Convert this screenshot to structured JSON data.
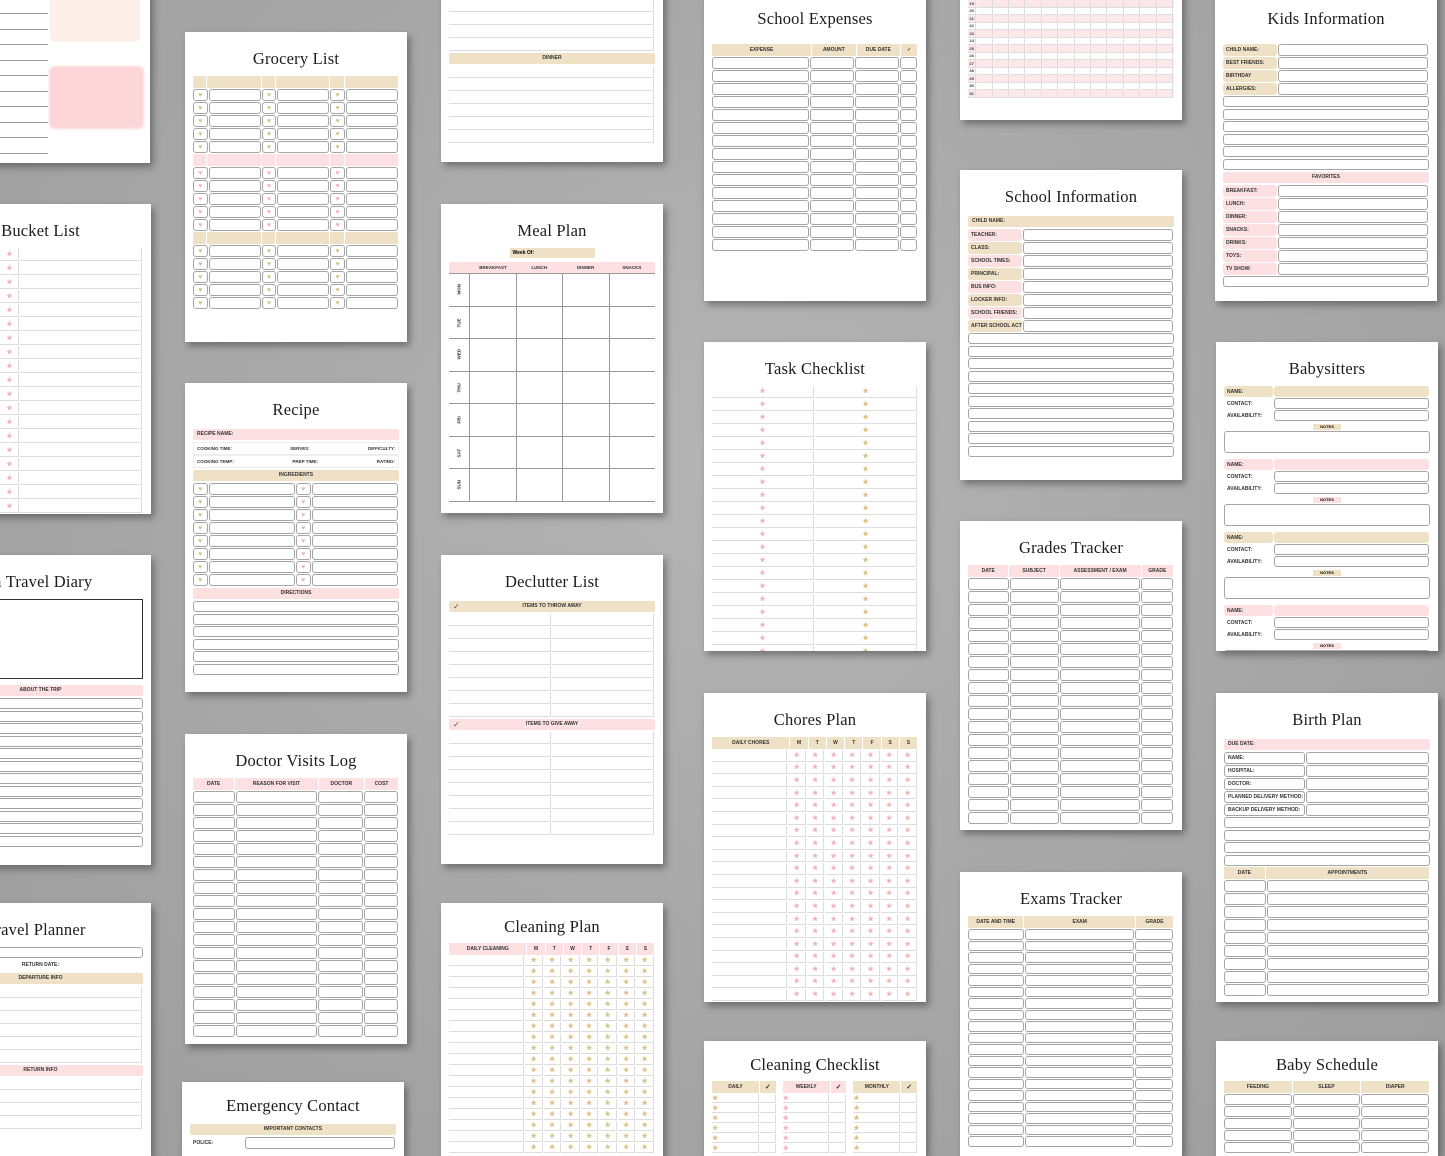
{
  "colors": {
    "beige": "#efe1c6",
    "pink": "#fde0e1",
    "gold_icon": "#dcc088",
    "pink_icon": "#f2b3b8",
    "background": "#a9a9a9"
  },
  "icons": {
    "heart": "heart-icon",
    "star": "star-icon",
    "check": "checkmark-icon"
  },
  "pages": [
    {
      "id": "p-topleft",
      "title": "",
      "blocks": [
        {
          "type": "lines",
          "rows": 10
        }
      ]
    },
    {
      "id": "grocery",
      "title": "Grocery List",
      "blocks": [
        {
          "type": "table",
          "tone": "beige",
          "headers": [
            "",
            "",
            "",
            "",
            "",
            ""
          ],
          "rows": 5,
          "icon": "heart",
          "icon_tone": "gold",
          "icon_cols": [
            0,
            2,
            4
          ]
        },
        {
          "type": "table",
          "tone": "pink",
          "headers": [
            "",
            "",
            "",
            "",
            "",
            ""
          ],
          "rows": 5,
          "icon": "heart",
          "icon_tone": "rose",
          "icon_cols": [
            0,
            2,
            4
          ]
        },
        {
          "type": "table",
          "tone": "beige",
          "headers": [
            "",
            "",
            "",
            "",
            "",
            ""
          ],
          "rows": 5,
          "icon": "heart",
          "icon_tone": "gold",
          "icon_cols": [
            0,
            2,
            4
          ]
        }
      ]
    },
    {
      "id": "bucket",
      "title": "Bucket List",
      "blocks": [
        {
          "type": "table",
          "flat": true,
          "headers": [],
          "rows": 19,
          "cols": 3,
          "icon": "star",
          "icon_tone": "rose",
          "icon_cols": [
            1
          ]
        }
      ]
    },
    {
      "id": "recipe",
      "title": "Recipe",
      "blocks": [
        {
          "type": "band",
          "tone": "pink",
          "label": "RECIPE NAME:",
          "align": "left"
        },
        {
          "type": "inline",
          "items": [
            "COOKING TIME:",
            "SERVES:",
            "DIFFICULTY:"
          ]
        },
        {
          "type": "inline",
          "items": [
            "COOKING TEMP:",
            "PREP TIME:",
            "RATING:"
          ]
        },
        {
          "type": "band",
          "tone": "beige",
          "label": "INGREDIENTS"
        },
        {
          "type": "table",
          "headers": [],
          "cols": 4,
          "rows": 8,
          "icon": "heart",
          "icon_tone": "gold",
          "icon_cols": [
            0
          ],
          "icon2_tone": "rose",
          "icon2_cols": [
            2
          ]
        },
        {
          "type": "band",
          "tone": "pink",
          "label": "DIRECTIONS"
        },
        {
          "type": "lines",
          "rows": 6
        }
      ]
    },
    {
      "id": "travel-diary",
      "title": "m Travel Diary",
      "blocks": [
        {
          "type": "frame"
        },
        {
          "type": "band",
          "tone": "pink",
          "label": "ABOUT THE TRIP"
        },
        {
          "type": "lines",
          "rows": 12
        }
      ]
    },
    {
      "id": "doctor",
      "title": "Doctor Visits Log",
      "blocks": [
        {
          "type": "table",
          "tone": "pink",
          "headers": [
            "DATE",
            "REASON FOR VISIT",
            "DOCTOR",
            "COST"
          ],
          "rows": 19
        }
      ]
    },
    {
      "id": "travel-planner",
      "title": "ravel Planner",
      "blocks": [
        {
          "type": "lines",
          "rows": 1
        },
        {
          "type": "band",
          "tone": "white",
          "label": "RETURN DATE:"
        },
        {
          "type": "band",
          "tone": "beige",
          "label": "DEPARTURE INFO"
        },
        {
          "type": "table",
          "flat": true,
          "headers": [],
          "cols": 1,
          "rows": 6
        },
        {
          "type": "band",
          "tone": "pink",
          "label": "RETURN INFO"
        },
        {
          "type": "table",
          "flat": true,
          "headers": [],
          "cols": 1,
          "rows": 4
        }
      ]
    },
    {
      "id": "emergency",
      "title": "Emergency Contact",
      "blocks": [
        {
          "type": "band",
          "tone": "beige",
          "label": "IMPORTANT CONTACTS"
        },
        {
          "type": "fields",
          "tone": "white",
          "labels": [
            "POLICE:"
          ]
        }
      ]
    },
    {
      "id": "top-partial",
      "title": "",
      "blocks": [
        {
          "type": "table",
          "flat": true,
          "headers": [],
          "cols": 1,
          "rows": 4
        },
        {
          "type": "band",
          "tone": "beige",
          "label": "DINNER"
        },
        {
          "type": "table",
          "flat": true,
          "headers": [],
          "cols": 1,
          "rows": 6
        }
      ]
    },
    {
      "id": "meal",
      "title": "Meal Plan",
      "blocks": [
        {
          "type": "week",
          "label": "Week Of:"
        },
        {
          "type": "mealgrid",
          "headers": [
            "",
            "BREAKFAST",
            "LUNCH",
            "DINNER",
            "SNACKS"
          ],
          "days": [
            "MON",
            "TUE",
            "WED",
            "THU",
            "FRI",
            "SAT",
            "SUN"
          ]
        }
      ]
    },
    {
      "id": "declutter",
      "title": "Declutter List",
      "blocks": [
        {
          "type": "band",
          "tone": "beige",
          "label": "ITEMS TO THROW AWAY",
          "check": true
        },
        {
          "type": "table",
          "flat": true,
          "headers": [],
          "cols": 2,
          "rows": 8
        },
        {
          "type": "band",
          "tone": "pink",
          "label": "ITEMS TO GIVE AWAY",
          "check": true
        },
        {
          "type": "table",
          "flat": true,
          "headers": [],
          "cols": 2,
          "rows": 8
        }
      ]
    },
    {
      "id": "cleaning-plan",
      "title": "Cleaning Plan",
      "blocks": [
        {
          "type": "table",
          "flat": true,
          "tone": "pink",
          "headers": [
            "DAILY CLEANING",
            "M",
            "T",
            "W",
            "T",
            "F",
            "S",
            "S"
          ],
          "rows": 18,
          "icon": "star",
          "icon_tone": "gold",
          "icon_cols": [
            1,
            2,
            3,
            4,
            5,
            6,
            7
          ]
        }
      ]
    },
    {
      "id": "school-expenses",
      "title": "School Expenses",
      "blocks": [
        {
          "type": "table",
          "tone": "beige",
          "headers": [
            "EXPENSE",
            "AMOUNT",
            "DUE DATE",
            "✓"
          ],
          "rows": 15
        }
      ]
    },
    {
      "id": "task",
      "title": "Task Checklist",
      "blocks": [
        {
          "type": "table",
          "flat": true,
          "headers": [],
          "cols": 2,
          "rows": 21,
          "icon": "star",
          "icon_tone": "rose",
          "icon_cols": [
            0
          ],
          "icon2_tone": "gold",
          "icon2_cols": [
            1
          ]
        }
      ]
    },
    {
      "id": "chores",
      "title": "Chores Plan",
      "blocks": [
        {
          "type": "table",
          "flat": true,
          "tone": "beige",
          "headers": [
            "DAILY CHORES",
            "M",
            "T",
            "W",
            "T",
            "F",
            "S",
            "S"
          ],
          "rows": 20,
          "icon": "star",
          "icon_tone": "rose",
          "icon_cols": [
            1,
            2,
            3,
            4,
            5,
            6,
            7
          ]
        }
      ]
    },
    {
      "id": "cleaning-checklist",
      "title": "Cleaning Checklist",
      "blocks": [
        {
          "type": "checklist3",
          "groups": [
            {
              "label": "DAILY",
              "tone": "beige",
              "icon_tone": "gold"
            },
            {
              "label": "WEEKLY",
              "tone": "pink",
              "icon_tone": "rose"
            },
            {
              "label": "MONTHLY",
              "tone": "beige",
              "icon_tone": "gold"
            }
          ],
          "rows": 6
        }
      ]
    },
    {
      "id": "calendar",
      "title": "",
      "blocks": [
        {
          "type": "calendar",
          "days": [
            "19",
            "20",
            "21",
            "22",
            "23",
            "24",
            "25",
            "26",
            "27",
            "28",
            "29",
            "30",
            "31"
          ]
        }
      ]
    },
    {
      "id": "school-info",
      "title": "School Information",
      "blocks": [
        {
          "type": "band",
          "tone": "beige",
          "label": "CHILD NAME:",
          "align": "left"
        },
        {
          "type": "fields",
          "tone": "alt",
          "labels": [
            "TEACHER:",
            "CLASS:",
            "SCHOOL TIMES:",
            "PRINCIPAL:",
            "BUS INFO:",
            "LOCKER INFO:",
            "SCHOOL FRIENDS:",
            "AFTER SCHOOL ACTIVITIES:"
          ]
        },
        {
          "type": "lines",
          "rows": 10
        }
      ]
    },
    {
      "id": "grades",
      "title": "Grades Tracker",
      "blocks": [
        {
          "type": "table",
          "tone": "pink",
          "headers": [
            "DATE",
            "SUBJECT",
            "ASSESSMENT / EXAM",
            "GRADE"
          ],
          "rows": 19
        }
      ]
    },
    {
      "id": "exams",
      "title": "Exams Tracker",
      "blocks": [
        {
          "type": "table",
          "tone": "beige",
          "headers": [
            "DATE AND TIME",
            "EXAM",
            "GRADE"
          ],
          "rows": 19
        }
      ]
    },
    {
      "id": "kids",
      "title": "Kids Information",
      "blocks": [
        {
          "type": "fields",
          "tone": "beige",
          "labels": [
            "CHILD NAME:",
            "BEST FRIENDS:",
            "BIRTHDAY",
            "ALLERGIES:"
          ]
        },
        {
          "type": "lines",
          "rows": 6
        },
        {
          "type": "band",
          "tone": "pink",
          "label": "FAVORITES"
        },
        {
          "type": "fields",
          "tone": "pink",
          "labels": [
            "BREAKFAST:",
            "LUNCH:",
            "DINNER:",
            "SNACKS:",
            "DRINKS:",
            "TOYS:",
            "TV SHOW:"
          ]
        },
        {
          "type": "lines",
          "rows": 1
        }
      ]
    },
    {
      "id": "babysitters",
      "title": "Babysitters",
      "blocks": [
        {
          "type": "sitter",
          "tone": "beige",
          "labels": [
            "NAME:",
            "CONTACT:",
            "AVAILABILITY:"
          ],
          "notes": "NOTES"
        },
        {
          "type": "sitter",
          "tone": "pink",
          "labels": [
            "NAME:",
            "CONTACT:",
            "AVAILABILITY:"
          ],
          "notes": "NOTES"
        },
        {
          "type": "sitter",
          "tone": "beige",
          "labels": [
            "NAME:",
            "CONTACT:",
            "AVAILABILITY:"
          ],
          "notes": "NOTES"
        },
        {
          "type": "sitter",
          "tone": "pink",
          "labels": [
            "NAME:",
            "CONTACT:",
            "AVAILABILITY:"
          ],
          "notes": "NOTES"
        }
      ]
    },
    {
      "id": "birth",
      "title": "Birth Plan",
      "blocks": [
        {
          "type": "band",
          "tone": "pink",
          "label": "DUE DATE:",
          "align": "left"
        },
        {
          "type": "fields",
          "tone": "box",
          "labels": [
            "NAME:",
            "HOSPITAL:",
            "DOCTOR:",
            "PLANNED DELIVERY METHOD:",
            "BACKUP DELIVERY METHOD:"
          ]
        },
        {
          "type": "lines",
          "rows": 4
        },
        {
          "type": "table",
          "tone": "beige",
          "headers": [
            "DATE",
            "APPOINTMENTS"
          ],
          "rows": 9
        }
      ]
    },
    {
      "id": "baby-schedule",
      "title": "Baby Schedule",
      "blocks": [
        {
          "type": "table",
          "tone": "beige",
          "headers": [
            "FEEDING",
            "SLEEP",
            "DIAPER"
          ],
          "rows": 5
        }
      ]
    }
  ]
}
